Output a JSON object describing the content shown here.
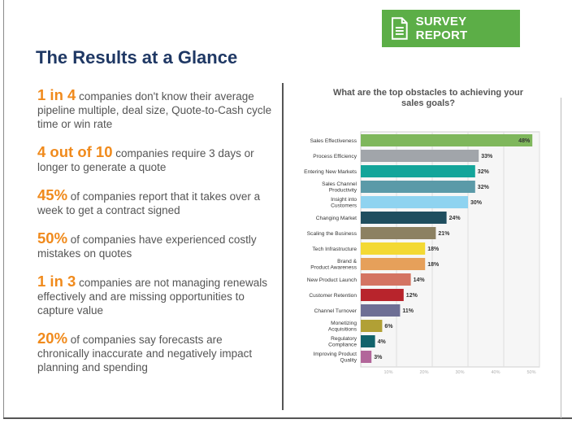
{
  "badge": {
    "label": "SURVEY REPORT",
    "icon": "document-icon",
    "color": "#5cae47"
  },
  "header": {
    "title": "The Results at a Glance"
  },
  "stats": [
    {
      "highlight": "1 in 4",
      "text": " companies don't know their average pipeline multiple, deal size, Quote-to-Cash cycle time or win rate"
    },
    {
      "highlight": "4 out of 10",
      "text": " companies require 3 days or longer to generate a quote"
    },
    {
      "highlight": "45%",
      "text": " of companies report that it takes over a week to get a contract signed"
    },
    {
      "highlight": "50%",
      "text": " of companies have experienced costly mistakes on quotes"
    },
    {
      "highlight": "1 in 3",
      "text": " companies are not managing renewals effectively and are missing opportunities to capture value"
    },
    {
      "highlight": "20%",
      "text": " of companies say forecasts are chronically inaccurate and negatively impact planning and spending"
    }
  ],
  "chart_data": {
    "type": "bar",
    "orientation": "horizontal",
    "title": "What are the top obstacles to achieving your sales goals?",
    "categories": [
      "Sales Effectiveness",
      "Process Efficiency",
      "Entering New Markets",
      "Sales Channel Productivity",
      "Insight into Customers",
      "Changing Market",
      "Scaling the Business",
      "Tech Infrastructure",
      "Brand & Product Awareness",
      "New Product Launch",
      "Customer Retention",
      "Channel Turnover",
      "Monetizing Acquisitions",
      "Regulatory Compliance",
      "Improving Product Quality"
    ],
    "values": [
      48,
      33,
      32,
      32,
      30,
      24,
      21,
      18,
      18,
      14,
      12,
      11,
      6,
      4,
      3
    ],
    "value_labels": [
      "48%",
      "33%",
      "32%",
      "32%",
      "30%",
      "24%",
      "21%",
      "18%",
      "18%",
      "14%",
      "12%",
      "11%",
      "6%",
      "4%",
      "3%"
    ],
    "colors": [
      "#7fb75c",
      "#a1a5aa",
      "#14a59a",
      "#5b9aa8",
      "#8fd3f0",
      "#1f4e5f",
      "#8c8162",
      "#f3d934",
      "#e6a05a",
      "#d47462",
      "#b8242c",
      "#6e6f95",
      "#b1a035",
      "#11636b",
      "#b2669a"
    ],
    "xticks": [
      "10%",
      "20%",
      "30%",
      "40%",
      "50%"
    ],
    "xlim": [
      0,
      50
    ],
    "grid": true
  }
}
